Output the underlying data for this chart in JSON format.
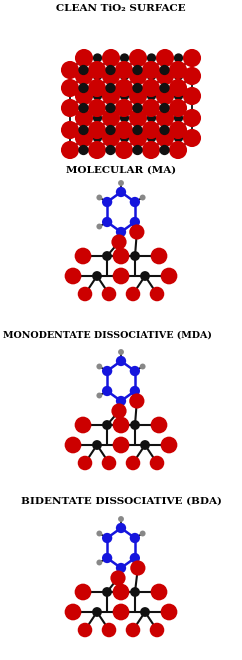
{
  "title_clean": "CLEAN TiO₂ SURFACE",
  "title_ma": "MOLECULAR (MA)",
  "title_mda": "MONODENTATE DISSOCIATIVE (MDA)",
  "title_bda": "BIDENTATE DISSOCIATIVE (BDA)",
  "colors": {
    "Ti": "#111111",
    "O": "#cc0000",
    "C": "#1515dd",
    "H": "#888888",
    "bond": "#111111",
    "bg": "#ffffff"
  },
  "figsize": [
    2.42,
    6.6
  ],
  "dpi": 100
}
